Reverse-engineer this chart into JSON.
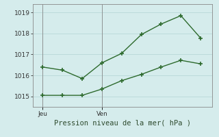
{
  "line1_x": [
    0,
    1,
    2,
    3,
    4,
    5,
    6,
    7,
    8
  ],
  "line1_y": [
    1016.4,
    1016.25,
    1015.85,
    1016.6,
    1017.05,
    1017.95,
    1018.45,
    1018.85,
    1017.78
  ],
  "line2_x": [
    0,
    1,
    2,
    3,
    4,
    5,
    6,
    7,
    8
  ],
  "line2_y": [
    1015.05,
    1015.05,
    1015.05,
    1015.35,
    1015.75,
    1016.05,
    1016.4,
    1016.72,
    1016.55
  ],
  "line_color": "#2d6a2d",
  "bg_color": "#d5ecec",
  "grid_color": "#b8d8d8",
  "xlabel": "Pression niveau de la mer( hPa )",
  "yticks": [
    1015,
    1016,
    1017,
    1018,
    1019
  ],
  "xtick_positions": [
    0,
    3.0
  ],
  "xtick_labels": [
    "Jeu",
    "Ven"
  ],
  "ylim": [
    1014.5,
    1019.4
  ],
  "xlim": [
    -0.5,
    8.6
  ],
  "vline_positions": [
    0,
    3.0
  ]
}
